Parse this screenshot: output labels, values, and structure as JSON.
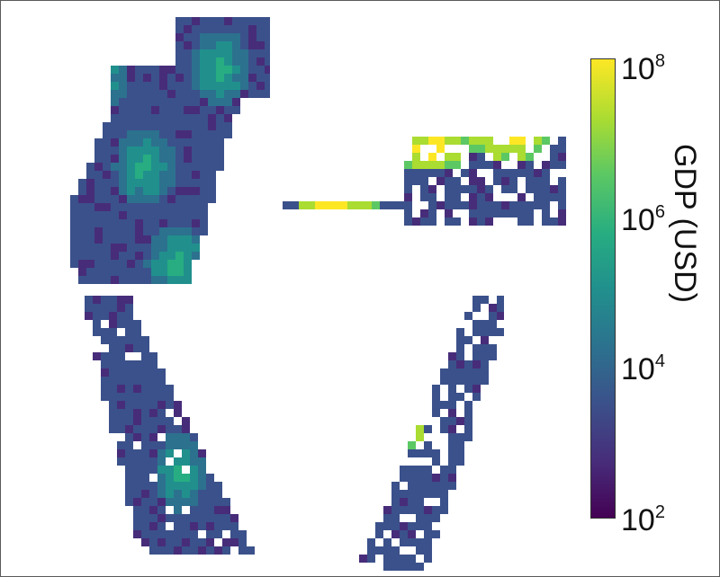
{
  "chart_data": {
    "type": "heatmap",
    "description_panels": 4,
    "colormap": "viridis",
    "colorbar": {
      "label": "GDP (USD)",
      "scale": "log",
      "range": [
        100,
        100000000
      ],
      "ticks": [
        {
          "base": "10",
          "exp": "2",
          "value": 100
        },
        {
          "base": "10",
          "exp": "4",
          "value": 10000
        },
        {
          "base": "10",
          "exp": "6",
          "value": 1000000
        },
        {
          "base": "10",
          "exp": "8",
          "value": 100000000
        }
      ],
      "colors": [
        "#440154",
        "#472c7a",
        "#3b518b",
        "#2c718e",
        "#21908d",
        "#27ad81",
        "#5cc863",
        "#aadc32",
        "#fde725"
      ]
    },
    "panels": [
      {
        "name": "",
        "typical_log10_gdp": 3,
        "hotspot_log10_gdp": 5.5
      },
      {
        "name": "",
        "typical_log10_gdp": 3,
        "hotspot_log10_gdp": 8
      },
      {
        "name": "",
        "typical_log10_gdp": 3,
        "hotspot_log10_gdp": 5.5
      },
      {
        "name": "",
        "typical_log10_gdp": 3,
        "hotspot_log10_gdp": 8
      }
    ]
  }
}
